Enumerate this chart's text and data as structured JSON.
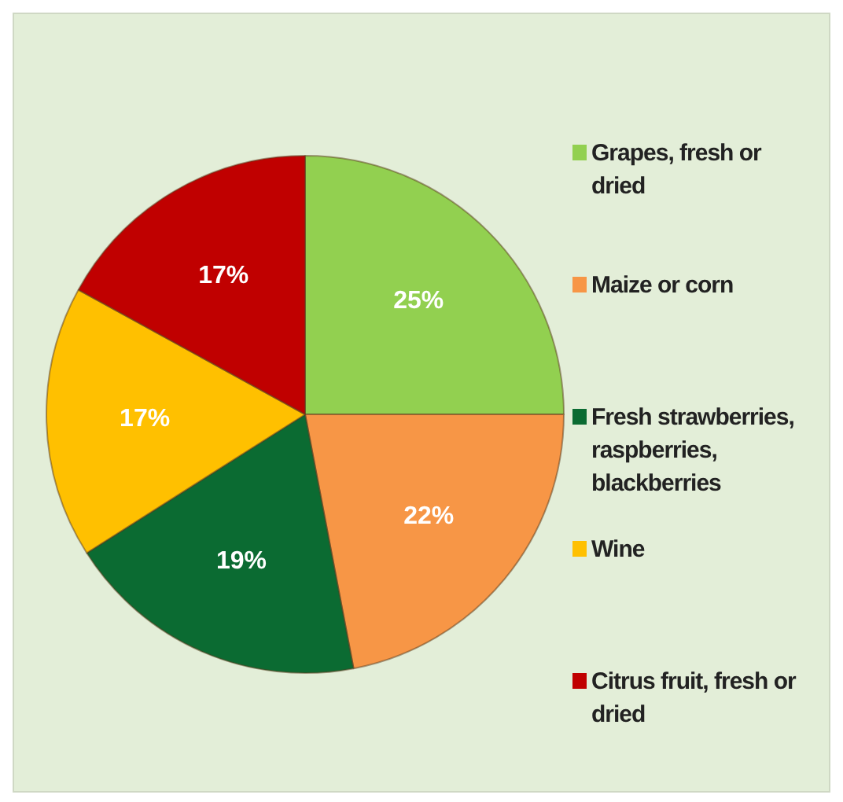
{
  "chart_data": {
    "type": "pie",
    "categories": [
      "Grapes, fresh or dried",
      "Maize or corn",
      "Fresh strawberries, raspberries, blackberries",
      "Wine",
      "Citrus fruit, fresh or dried"
    ],
    "values": [
      25,
      22,
      19,
      17,
      17
    ],
    "colors": [
      "#92d050",
      "#f79646",
      "#0b6b32",
      "#ffc000",
      "#c00000"
    ],
    "value_labels": [
      "25%",
      "22%",
      "19%",
      "17%",
      "17%"
    ],
    "legend": "right"
  }
}
